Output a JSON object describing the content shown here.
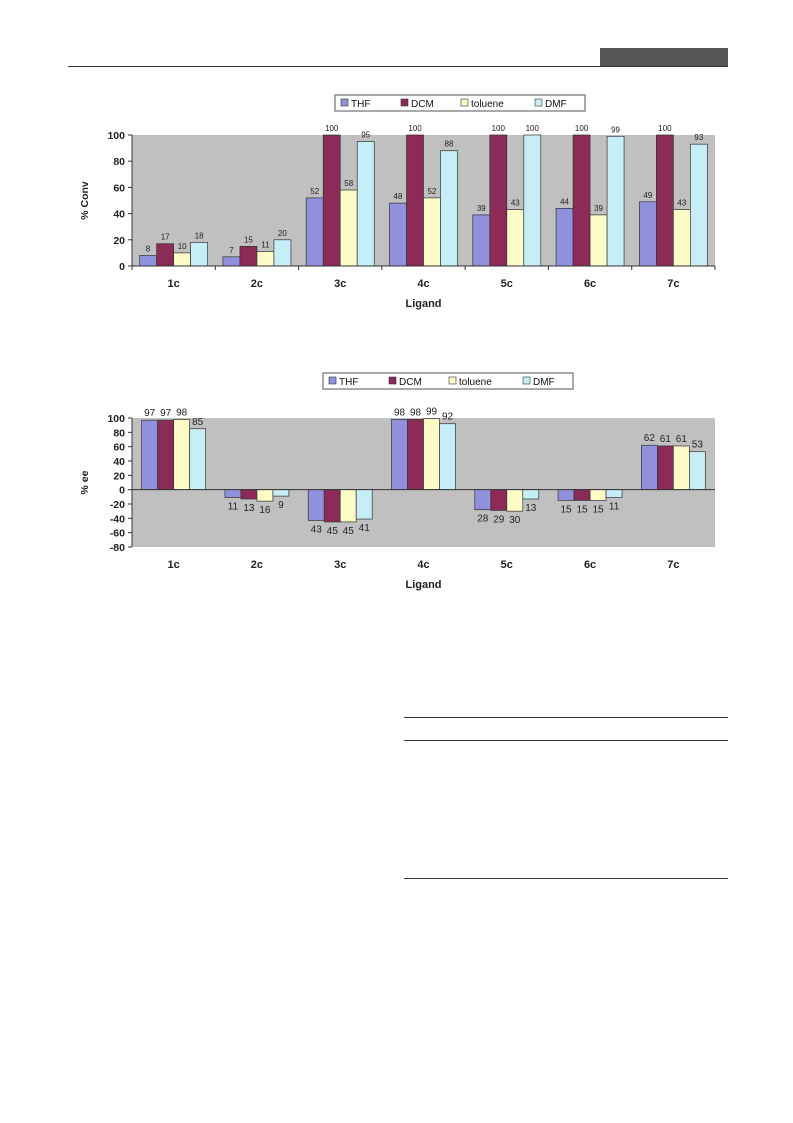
{
  "colors": {
    "THF": "#9090dd",
    "DCM": "#8c2a58",
    "toluene": "#fdfbc6",
    "DMF": "#c6eef6",
    "plot_bg": "#c0c0c0"
  },
  "chart_data": [
    {
      "type": "bar",
      "title": "",
      "xlabel": "Ligand",
      "ylabel": "% Conv",
      "ylim": [
        0,
        100
      ],
      "yticks": [
        0,
        20,
        40,
        60,
        80,
        100
      ],
      "yticks_text": [
        "0",
        "20",
        "40",
        "60",
        "80",
        "100"
      ],
      "legend_position": "top-center",
      "grid": false,
      "categories": [
        "1c",
        "2c",
        "3c",
        "4c",
        "5c",
        "6c",
        "7c"
      ],
      "series": [
        {
          "name": "THF",
          "values": [
            8,
            7,
            52,
            48,
            39,
            44,
            49
          ],
          "labels": [
            "8",
            "7",
            "52",
            "48",
            "39",
            "44",
            "49"
          ]
        },
        {
          "name": "DCM",
          "values": [
            17,
            15,
            100,
            100,
            100,
            100,
            100
          ],
          "labels": [
            "17",
            "15",
            "100",
            "100",
            "100",
            "100",
            "100"
          ]
        },
        {
          "name": "toluene",
          "values": [
            10,
            11,
            58,
            52,
            43,
            39,
            43
          ],
          "labels": [
            "10",
            "11",
            "58",
            "52",
            "43",
            "39",
            "43"
          ]
        },
        {
          "name": "DMF",
          "values": [
            18,
            20,
            95,
            88,
            100,
            99,
            93
          ],
          "labels": [
            "18",
            "20",
            "95",
            "88",
            "100",
            "99",
            "93"
          ]
        }
      ]
    },
    {
      "type": "bar",
      "title": "",
      "xlabel": "Ligand",
      "ylabel": "% ee",
      "ylim": [
        -80,
        100
      ],
      "yticks": [
        -80,
        -60,
        -40,
        -20,
        0,
        20,
        40,
        60,
        80,
        100
      ],
      "yticks_text": [
        "-80",
        "-60",
        "-40",
        "-20",
        "0",
        "20",
        "40",
        "60",
        "80",
        "100"
      ],
      "legend_position": "top-center",
      "grid": false,
      "categories": [
        "1c",
        "2c",
        "3c",
        "4c",
        "5c",
        "6c",
        "7c"
      ],
      "series": [
        {
          "name": "THF",
          "values": [
            97,
            -11,
            -43,
            98,
            -28,
            -15,
            62
          ],
          "labels": [
            "97",
            "11",
            "43",
            "98",
            "28",
            "15",
            "62"
          ]
        },
        {
          "name": "DCM",
          "values": [
            97,
            -13,
            -45,
            98,
            -29,
            -15,
            61
          ],
          "labels": [
            "97",
            "13",
            "45",
            "98",
            "29",
            "15",
            "61"
          ]
        },
        {
          "name": "toluene",
          "values": [
            98,
            -16,
            -45,
            99,
            -30,
            -15,
            61
          ],
          "labels": [
            "98",
            "16",
            "45",
            "99",
            "30",
            "15",
            "61"
          ]
        },
        {
          "name": "DMF",
          "values": [
            85,
            -9,
            -41,
            92,
            -13,
            -11,
            53
          ],
          "labels": [
            "85",
            "9",
            "41",
            "92",
            "13",
            "11",
            "53"
          ]
        }
      ]
    }
  ]
}
